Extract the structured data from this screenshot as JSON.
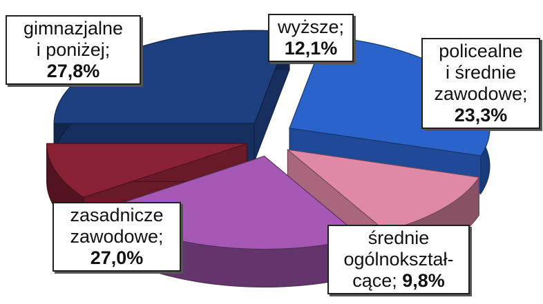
{
  "chart_data": {
    "type": "pie",
    "title": "",
    "slices": [
      {
        "lines": [
          "gimnazjalne",
          "i poniżej;"
        ],
        "value_label": "27,8%",
        "value": 27.8,
        "color": "#1e3f7e"
      },
      {
        "lines": [
          "zasadnicze",
          "zawodowe;"
        ],
        "value_label": "27,0%",
        "value": 27.0,
        "color": "#2a63c9"
      },
      {
        "lines": [
          "wyższe;"
        ],
        "value_label": "12,1%",
        "value": 12.1,
        "color": "#e089a6"
      },
      {
        "lines": [
          "policealne",
          "i średnie",
          "zawodowe;"
        ],
        "value_label": "23,3%",
        "value": 23.3,
        "color": "#a559b4"
      },
      {
        "lines": [
          "średnie",
          "ogólnokształ-",
          "cące;"
        ],
        "value_label": "9,8%",
        "value": 9.8,
        "color": "#8a2235"
      }
    ]
  }
}
